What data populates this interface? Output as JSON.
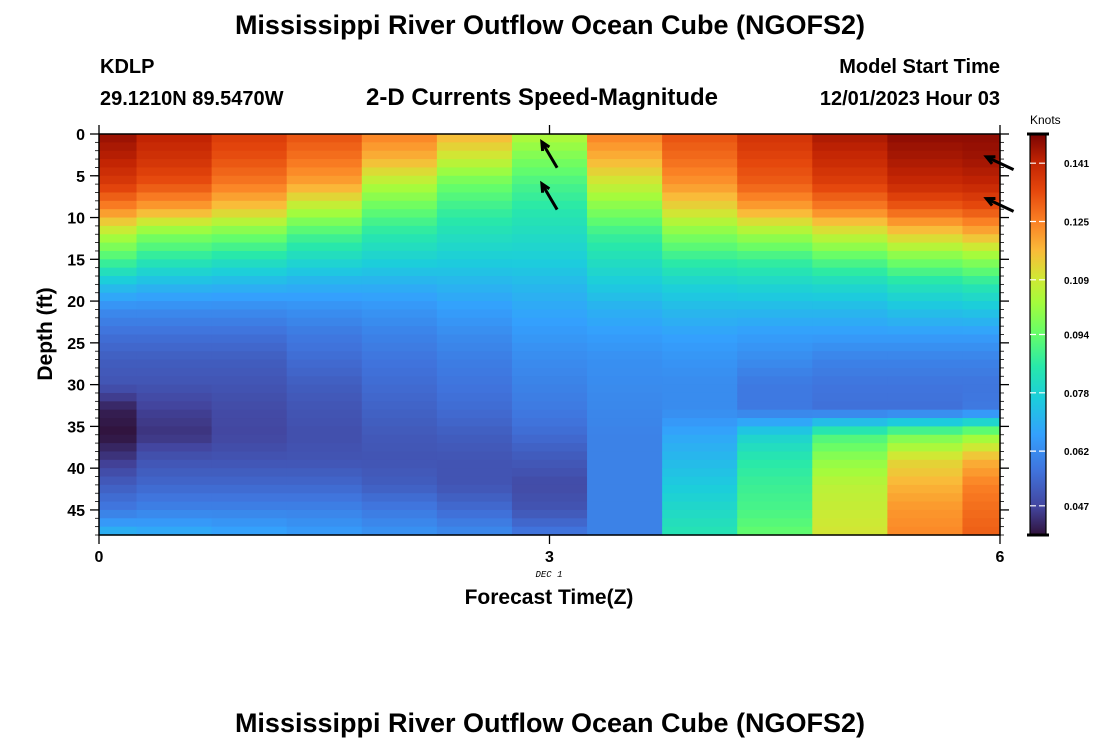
{
  "title": "Mississippi River Outflow Ocean Cube (NGOFS2)",
  "station": {
    "id": "KDLP",
    "coords": "29.1210N  89.5470W"
  },
  "subtitle": "2-D Currents Speed-Magnitude",
  "model_start": {
    "label": "Model Start Time",
    "value": "12/01/2023 Hour 03"
  },
  "footer_title": "Mississippi River Outflow Ocean Cube (NGOFS2)",
  "chart_data": {
    "type": "heatmap",
    "xlabel": "Forecast Time(Z)",
    "ylabel": "Depth (ft)",
    "date_label": "DEC 1",
    "xlim": [
      0,
      6
    ],
    "ylim": [
      0,
      48
    ],
    "y_inverted": true,
    "x_ticks": [
      "0",
      "3",
      "6"
    ],
    "y_ticks": [
      "0",
      "5",
      "10",
      "15",
      "20",
      "25",
      "30",
      "35",
      "40",
      "45"
    ],
    "colorbar": {
      "label": "Knots",
      "min": 0.039,
      "max": 0.149,
      "ticks": [
        "0.141",
        "0.125",
        "0.109",
        "0.094",
        "0.078",
        "0.062",
        "0.047"
      ],
      "tick_values": [
        0.141,
        0.125,
        0.109,
        0.094,
        0.078,
        0.062,
        0.047
      ]
    },
    "time_columns": [
      0,
      0.5,
      1,
      1.5,
      2,
      2.5,
      3,
      3.5,
      4,
      4.5,
      5,
      5.5,
      6
    ],
    "depth_profiles": [
      [
        [
          0,
          0.146
        ],
        [
          3,
          0.142
        ],
        [
          6,
          0.136
        ],
        [
          9,
          0.124
        ],
        [
          12,
          0.105
        ],
        [
          15,
          0.09
        ],
        [
          18,
          0.074
        ],
        [
          21,
          0.062
        ],
        [
          24,
          0.056
        ],
        [
          27,
          0.052
        ],
        [
          30,
          0.05
        ],
        [
          33,
          0.041
        ],
        [
          36,
          0.039
        ],
        [
          39,
          0.045
        ],
        [
          42,
          0.052
        ],
        [
          45,
          0.058
        ],
        [
          48,
          0.072
        ]
      ],
      [
        [
          0,
          0.142
        ],
        [
          3,
          0.138
        ],
        [
          6,
          0.132
        ],
        [
          9,
          0.12
        ],
        [
          12,
          0.098
        ],
        [
          15,
          0.085
        ],
        [
          18,
          0.072
        ],
        [
          21,
          0.062
        ],
        [
          24,
          0.056
        ],
        [
          27,
          0.052
        ],
        [
          30,
          0.05
        ],
        [
          33,
          0.046
        ],
        [
          36,
          0.044
        ],
        [
          39,
          0.05
        ],
        [
          42,
          0.054
        ],
        [
          45,
          0.06
        ],
        [
          48,
          0.07
        ]
      ],
      [
        [
          0,
          0.136
        ],
        [
          3,
          0.132
        ],
        [
          6,
          0.126
        ],
        [
          9,
          0.115
        ],
        [
          12,
          0.096
        ],
        [
          15,
          0.083
        ],
        [
          18,
          0.071
        ],
        [
          21,
          0.062
        ],
        [
          24,
          0.056
        ],
        [
          27,
          0.052
        ],
        [
          30,
          0.05
        ],
        [
          33,
          0.048
        ],
        [
          36,
          0.047
        ],
        [
          39,
          0.05
        ],
        [
          42,
          0.054
        ],
        [
          45,
          0.06
        ],
        [
          48,
          0.068
        ]
      ],
      [
        [
          0,
          0.132
        ],
        [
          3,
          0.127
        ],
        [
          6,
          0.12
        ],
        [
          9,
          0.105
        ],
        [
          12,
          0.09
        ],
        [
          15,
          0.08
        ],
        [
          18,
          0.07
        ],
        [
          21,
          0.063
        ],
        [
          24,
          0.058
        ],
        [
          27,
          0.055
        ],
        [
          30,
          0.052
        ],
        [
          33,
          0.05
        ],
        [
          36,
          0.049
        ],
        [
          39,
          0.05
        ],
        [
          42,
          0.054
        ],
        [
          45,
          0.06
        ],
        [
          48,
          0.066
        ]
      ],
      [
        [
          0,
          0.125
        ],
        [
          3,
          0.118
        ],
        [
          6,
          0.105
        ],
        [
          9,
          0.094
        ],
        [
          12,
          0.085
        ],
        [
          15,
          0.078
        ],
        [
          18,
          0.07
        ],
        [
          21,
          0.064
        ],
        [
          24,
          0.06
        ],
        [
          27,
          0.057
        ],
        [
          30,
          0.055
        ],
        [
          33,
          0.053
        ],
        [
          36,
          0.051
        ],
        [
          39,
          0.05
        ],
        [
          42,
          0.052
        ],
        [
          45,
          0.058
        ],
        [
          48,
          0.064
        ]
      ],
      [
        [
          0,
          0.118
        ],
        [
          3,
          0.108
        ],
        [
          6,
          0.095
        ],
        [
          9,
          0.088
        ],
        [
          12,
          0.082
        ],
        [
          15,
          0.077
        ],
        [
          18,
          0.071
        ],
        [
          21,
          0.066
        ],
        [
          24,
          0.062
        ],
        [
          27,
          0.059
        ],
        [
          30,
          0.057
        ],
        [
          33,
          0.055
        ],
        [
          36,
          0.052
        ],
        [
          39,
          0.05
        ],
        [
          42,
          0.05
        ],
        [
          45,
          0.055
        ],
        [
          48,
          0.062
        ]
      ],
      [
        [
          0,
          0.105
        ],
        [
          3,
          0.097
        ],
        [
          6,
          0.09
        ],
        [
          9,
          0.085
        ],
        [
          12,
          0.081
        ],
        [
          15,
          0.077
        ],
        [
          18,
          0.072
        ],
        [
          21,
          0.068
        ],
        [
          24,
          0.065
        ],
        [
          27,
          0.062
        ],
        [
          30,
          0.06
        ],
        [
          33,
          0.058
        ],
        [
          36,
          0.055
        ],
        [
          39,
          0.051
        ],
        [
          42,
          0.048
        ],
        [
          45,
          0.05
        ],
        [
          48,
          0.058
        ]
      ],
      [
        [
          0,
          0.125
        ],
        [
          3,
          0.118
        ],
        [
          6,
          0.108
        ],
        [
          9,
          0.098
        ],
        [
          12,
          0.088
        ],
        [
          15,
          0.082
        ],
        [
          18,
          0.076
        ],
        [
          21,
          0.07
        ],
        [
          24,
          0.066
        ],
        [
          27,
          0.063
        ],
        [
          30,
          0.062
        ],
        [
          33,
          0.061
        ],
        [
          36,
          0.06
        ],
        [
          39,
          0.06
        ],
        [
          42,
          0.06
        ],
        [
          45,
          0.06
        ],
        [
          48,
          0.06
        ]
      ],
      [
        [
          0,
          0.132
        ],
        [
          3,
          0.128
        ],
        [
          6,
          0.122
        ],
        [
          9,
          0.112
        ],
        [
          12,
          0.098
        ],
        [
          15,
          0.087
        ],
        [
          18,
          0.078
        ],
        [
          21,
          0.072
        ],
        [
          24,
          0.067
        ],
        [
          27,
          0.064
        ],
        [
          30,
          0.062
        ],
        [
          33,
          0.062
        ],
        [
          36,
          0.068
        ],
        [
          39,
          0.072
        ],
        [
          42,
          0.076
        ],
        [
          45,
          0.08
        ],
        [
          48,
          0.084
        ]
      ],
      [
        [
          0,
          0.138
        ],
        [
          3,
          0.134
        ],
        [
          6,
          0.13
        ],
        [
          9,
          0.12
        ],
        [
          12,
          0.102
        ],
        [
          15,
          0.088
        ],
        [
          18,
          0.079
        ],
        [
          21,
          0.072
        ],
        [
          24,
          0.066
        ],
        [
          27,
          0.062
        ],
        [
          30,
          0.058
        ],
        [
          33,
          0.058
        ],
        [
          36,
          0.078
        ],
        [
          39,
          0.085
        ],
        [
          42,
          0.088
        ],
        [
          45,
          0.09
        ],
        [
          48,
          0.094
        ]
      ],
      [
        [
          0,
          0.144
        ],
        [
          3,
          0.14
        ],
        [
          6,
          0.135
        ],
        [
          9,
          0.125
        ],
        [
          12,
          0.108
        ],
        [
          15,
          0.092
        ],
        [
          18,
          0.08
        ],
        [
          21,
          0.072
        ],
        [
          24,
          0.066
        ],
        [
          27,
          0.06
        ],
        [
          30,
          0.057
        ],
        [
          33,
          0.056
        ],
        [
          36,
          0.09
        ],
        [
          39,
          0.1
        ],
        [
          42,
          0.106
        ],
        [
          45,
          0.108
        ],
        [
          48,
          0.11
        ]
      ],
      [
        [
          0,
          0.147
        ],
        [
          3,
          0.144
        ],
        [
          6,
          0.14
        ],
        [
          9,
          0.13
        ],
        [
          12,
          0.114
        ],
        [
          15,
          0.097
        ],
        [
          18,
          0.083
        ],
        [
          21,
          0.074
        ],
        [
          24,
          0.066
        ],
        [
          27,
          0.06
        ],
        [
          30,
          0.057
        ],
        [
          33,
          0.056
        ],
        [
          36,
          0.096
        ],
        [
          39,
          0.112
        ],
        [
          42,
          0.118
        ],
        [
          45,
          0.122
        ],
        [
          48,
          0.124
        ]
      ],
      [
        [
          0,
          0.147
        ],
        [
          3,
          0.145
        ],
        [
          6,
          0.141
        ],
        [
          9,
          0.132
        ],
        [
          12,
          0.118
        ],
        [
          15,
          0.1
        ],
        [
          18,
          0.085
        ],
        [
          21,
          0.075
        ],
        [
          24,
          0.066
        ],
        [
          27,
          0.06
        ],
        [
          30,
          0.057
        ],
        [
          33,
          0.058
        ],
        [
          36,
          0.1
        ],
        [
          39,
          0.118
        ],
        [
          42,
          0.125
        ],
        [
          45,
          0.128
        ],
        [
          48,
          0.13
        ]
      ]
    ],
    "vectors": [
      {
        "time": 3,
        "depth": 2.5
      },
      {
        "time": 3,
        "depth": 7.5
      },
      {
        "time": 6,
        "depth": 3.5
      },
      {
        "time": 6,
        "depth": 8.5
      }
    ]
  }
}
